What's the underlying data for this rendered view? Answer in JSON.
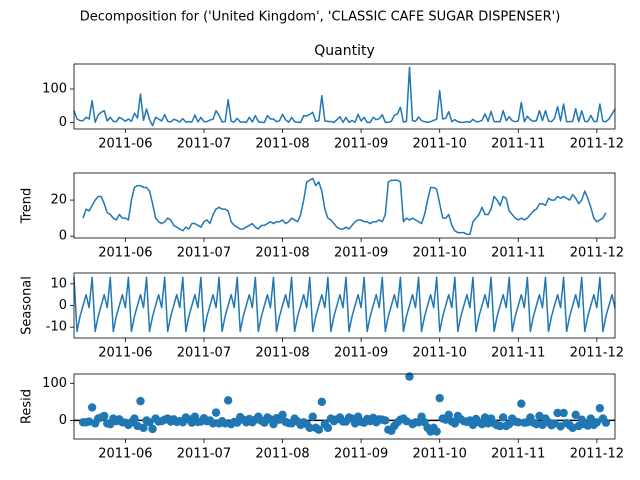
{
  "title": "Decomposition for ('United Kingdom', 'CLASSIC CAFE SUGAR DISPENSER')",
  "chart_data": [
    {
      "type": "line",
      "title": "Quantity",
      "color": "#1f77b4",
      "values": [
        35,
        10,
        5,
        5,
        15,
        10,
        65,
        0,
        22,
        30,
        35,
        4,
        15,
        3,
        2,
        15,
        10,
        3,
        10,
        3,
        27,
        13,
        85,
        6,
        40,
        8,
        -10,
        15,
        10,
        4,
        23,
        3,
        1,
        9,
        6,
        1,
        11,
        1,
        2,
        1,
        22,
        1,
        15,
        2,
        2,
        7,
        9,
        35,
        21,
        1,
        2,
        68,
        3,
        1,
        12,
        1,
        1,
        0,
        15,
        1,
        20,
        2,
        0,
        0,
        20,
        10,
        10,
        2,
        5,
        24,
        8,
        0,
        15,
        2,
        0,
        0,
        20,
        19,
        24,
        30,
        3,
        5,
        80,
        4,
        3,
        2,
        0,
        8,
        17,
        0,
        15,
        0,
        6,
        0,
        24,
        4,
        15,
        0,
        0,
        15,
        8,
        11,
        23,
        0,
        0,
        3,
        21,
        25,
        45,
        1,
        3,
        165,
        5,
        3,
        16,
        5,
        2,
        0,
        2,
        6,
        9,
        95,
        10,
        12,
        32,
        2,
        8,
        2,
        0,
        0,
        2,
        0,
        9,
        2,
        2,
        6,
        25,
        3,
        33,
        2,
        2,
        2,
        35,
        5,
        17,
        5,
        2,
        4,
        60,
        2,
        18,
        8,
        3,
        5,
        35,
        5,
        35,
        4,
        2,
        12,
        47,
        4,
        55,
        2,
        2,
        3,
        41,
        2,
        35,
        3,
        2,
        21,
        3,
        2,
        55,
        3,
        2,
        10,
        25,
        40
      ],
      "xlim": [
        0,
        179
      ],
      "xticks": [
        {
          "value": 17,
          "label": "2011-06"
        },
        {
          "value": 43,
          "label": "2011-07"
        },
        {
          "value": 69,
          "label": "2011-08"
        },
        {
          "value": 95,
          "label": "2011-09"
        },
        {
          "value": 121,
          "label": "2011-10"
        },
        {
          "value": 147,
          "label": "2011-11"
        },
        {
          "value": 173,
          "label": "2011-12"
        }
      ],
      "ylim": [
        -20,
        175
      ],
      "yticks": [
        0,
        100
      ]
    },
    {
      "type": "line",
      "ylabel": "Trend",
      "color": "#1f77b4",
      "values": [
        null,
        null,
        null,
        10,
        15,
        14,
        17,
        20,
        22,
        22,
        18,
        13,
        12,
        10,
        9,
        12,
        10,
        10,
        9,
        20,
        27,
        28,
        28,
        27,
        27,
        25,
        18,
        10,
        8,
        7,
        8,
        10,
        9,
        6,
        5,
        4,
        3,
        5,
        4,
        7,
        7,
        6,
        5,
        8,
        9,
        7,
        12,
        15,
        16,
        15,
        15,
        14,
        8,
        6,
        5,
        4,
        4,
        5,
        6,
        7,
        5,
        4,
        6,
        6,
        7,
        8,
        7,
        8,
        8,
        9,
        7,
        8,
        10,
        9,
        8,
        12,
        20,
        30,
        31,
        32,
        28,
        30,
        25,
        15,
        10,
        9,
        7,
        5,
        4,
        4,
        5,
        4,
        6,
        8,
        9,
        9,
        8,
        8,
        7,
        8,
        8,
        9,
        8,
        12,
        30,
        31,
        31,
        31,
        30,
        8,
        10,
        9,
        10,
        9,
        8,
        7,
        12,
        20,
        27,
        27,
        26,
        18,
        10,
        10,
        12,
        6,
        3,
        2,
        2,
        2,
        1,
        1,
        8,
        10,
        12,
        16,
        12,
        12,
        15,
        22,
        20,
        17,
        22,
        21,
        14,
        12,
        10,
        9,
        10,
        9,
        10,
        12,
        14,
        15,
        18,
        18,
        17,
        21,
        20,
        20,
        22,
        21,
        22,
        21,
        20,
        23,
        21,
        18,
        20,
        25,
        21,
        16,
        10,
        8,
        9,
        10,
        13,
        null,
        null,
        null
      ],
      "xlim": [
        0,
        179
      ],
      "xticks": [
        {
          "value": 17,
          "label": "2011-06"
        },
        {
          "value": 43,
          "label": "2011-07"
        },
        {
          "value": 69,
          "label": "2011-08"
        },
        {
          "value": 95,
          "label": "2011-09"
        },
        {
          "value": 121,
          "label": "2011-10"
        },
        {
          "value": 147,
          "label": "2011-11"
        },
        {
          "value": 173,
          "label": "2011-12"
        }
      ],
      "ylim": [
        -1,
        35
      ],
      "yticks": [
        0,
        20
      ]
    },
    {
      "type": "line",
      "ylabel": "Seasonal",
      "color": "#1f77b4",
      "values": [
        13,
        -12,
        -5,
        0,
        5,
        -1,
        13,
        -12,
        -5,
        0,
        5,
        -1,
        13,
        -12,
        -5,
        0,
        5,
        -1,
        13,
        -12,
        -5,
        0,
        5,
        -1,
        13,
        -12,
        -5,
        0,
        5,
        -1,
        13,
        -12,
        -5,
        0,
        5,
        -1,
        13,
        -12,
        -5,
        0,
        5,
        -1,
        13,
        -12,
        -5,
        0,
        5,
        -1,
        13,
        -12,
        -5,
        0,
        5,
        -1,
        13,
        -12,
        -5,
        0,
        5,
        -1,
        13,
        -12,
        -5,
        0,
        5,
        -1,
        13,
        -12,
        -5,
        0,
        5,
        -1,
        13,
        -12,
        -5,
        0,
        5,
        -1,
        13,
        -12,
        -5,
        0,
        5,
        -1,
        13,
        -12,
        -5,
        0,
        5,
        -1,
        13,
        -12,
        -5,
        0,
        5,
        -1,
        13,
        -12,
        -5,
        0,
        5,
        -1,
        13,
        -12,
        -5,
        0,
        5,
        -1,
        13,
        -12,
        -5,
        0,
        5,
        -1,
        13,
        -12,
        -5,
        0,
        5,
        -1,
        13,
        -12,
        -5,
        0,
        5,
        -1,
        13,
        -12,
        -5,
        0,
        5,
        -1,
        13,
        -12,
        -5,
        0,
        5,
        -1,
        13,
        -12,
        -5,
        0,
        5,
        -1,
        13,
        -12,
        -5,
        0,
        5,
        -1,
        13,
        -12,
        -5,
        0,
        5,
        -1,
        13,
        -12,
        -5,
        0,
        5,
        -1,
        13,
        -12,
        -5,
        0,
        5,
        -1,
        13,
        -12,
        -5,
        0,
        5,
        -1,
        13,
        -12,
        -5,
        0,
        5,
        -1
      ],
      "xlim": [
        0,
        179
      ],
      "xticks": [
        {
          "value": 17,
          "label": "2011-06"
        },
        {
          "value": 43,
          "label": "2011-07"
        },
        {
          "value": 69,
          "label": "2011-08"
        },
        {
          "value": 95,
          "label": "2011-09"
        },
        {
          "value": 121,
          "label": "2011-10"
        },
        {
          "value": 147,
          "label": "2011-11"
        },
        {
          "value": 173,
          "label": "2011-12"
        }
      ],
      "ylim": [
        -15,
        15
      ],
      "yticks": [
        -10,
        0,
        10
      ]
    },
    {
      "type": "scatter",
      "ylabel": "Resid",
      "color": "#1f77b4",
      "hline": 0,
      "values": [
        null,
        null,
        null,
        -5,
        -5,
        -3,
        35,
        -8,
        5,
        8,
        12,
        -8,
        -10,
        5,
        -2,
        3,
        -5,
        -6,
        -12,
        -5,
        5,
        -15,
        52,
        -20,
        0,
        -5,
        -23,
        5,
        -3,
        -2,
        2,
        5,
        -3,
        3,
        -4,
        -2,
        -5,
        8,
        3,
        -6,
        10,
        -4,
        -3,
        6,
        -2,
        0,
        -8,
        21,
        -8,
        -2,
        -8,
        54,
        -10,
        -4,
        -6,
        9,
        2,
        -5,
        4,
        -5,
        2,
        10,
        -1,
        -6,
        8,
        3,
        -10,
        6,
        2,
        15,
        -4,
        -7,
        -8,
        5,
        -3,
        -12,
        -5,
        -10,
        -20,
        10,
        -20,
        -25,
        50,
        -10,
        -20,
        5,
        -2,
        3,
        8,
        -3,
        -3,
        8,
        5,
        -8,
        10,
        -4,
        -6,
        4,
        -2,
        7,
        -5,
        3,
        2,
        0,
        -25,
        -28,
        -15,
        -5,
        2,
        5,
        -2,
        118,
        -10,
        -5,
        -5,
        10,
        -5,
        -20,
        -30,
        -20,
        -30,
        60,
        5,
        2,
        15,
        -3,
        -8,
        12,
        3,
        -2,
        -4,
        0,
        -12,
        4,
        -5,
        -10,
        8,
        -8,
        5,
        -8,
        -13,
        -15,
        8,
        -15,
        -10,
        5,
        -3,
        -5,
        45,
        -6,
        -5,
        8,
        -6,
        -10,
        12,
        -12,
        5,
        -5,
        -13,
        -8,
        20,
        -16,
        20,
        -7,
        -13,
        -20,
        15,
        -15,
        2,
        -10,
        -14,
        5,
        -12,
        -5,
        33,
        5,
        -6,
        null,
        null,
        null
      ],
      "xlim": [
        0,
        179
      ],
      "xticks": [
        {
          "value": 17,
          "label": "2011-06"
        },
        {
          "value": 43,
          "label": "2011-07"
        },
        {
          "value": 69,
          "label": "2011-08"
        },
        {
          "value": 95,
          "label": "2011-09"
        },
        {
          "value": 121,
          "label": "2011-10"
        },
        {
          "value": 147,
          "label": "2011-11"
        },
        {
          "value": 173,
          "label": "2011-12"
        }
      ],
      "ylim": [
        -50,
        125
      ],
      "yticks": [
        0,
        100
      ]
    }
  ]
}
